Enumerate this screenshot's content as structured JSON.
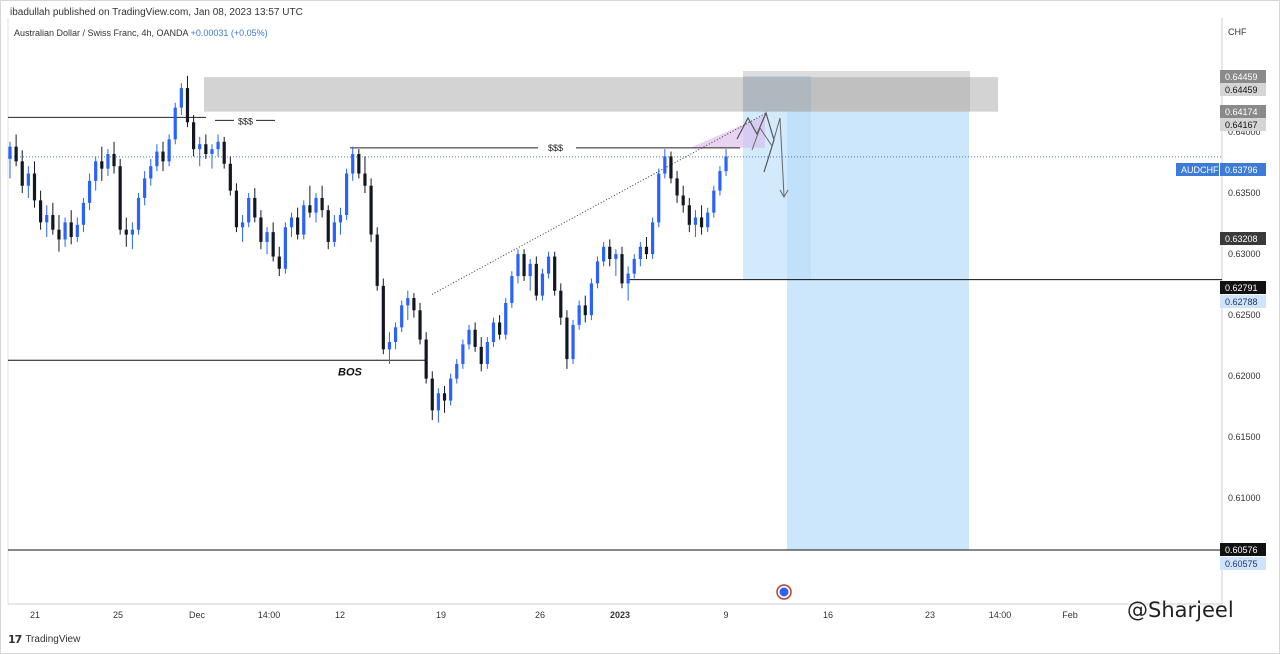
{
  "header": {
    "published": "ibadullah published on TradingView.com, Jan 08, 2023 13:57 UTC",
    "symbol_line": "Australian Dollar / Swiss Franc, 4h, OANDA",
    "change": "+0.00031 (+0.05%)",
    "currency": "CHF"
  },
  "footer": {
    "brand": "TradingView",
    "logo": "17"
  },
  "watermark": "@Sharjeel",
  "colors": {
    "up": "#2962ff",
    "down": "#131722",
    "zone": "#9e9e9e",
    "target": "#bbdefb",
    "grid": "#e6e6e6",
    "price_line": "#3d7bd6",
    "flag": "#2962ff"
  },
  "chart_data": {
    "type": "candlestick",
    "symbol": "AUDCHF",
    "interval": "4h",
    "current_price": 0.63796,
    "ylim": [
      0.6046,
      0.648
    ],
    "y_ticks": [
      "0.64000",
      "0.63500",
      "0.63000",
      "0.62500",
      "0.62000",
      "0.61500",
      "0.61000"
    ],
    "x_ticks": [
      "21",
      "25",
      "Dec",
      "14:00",
      "12",
      "19",
      "26",
      "2023",
      "9",
      "16",
      "23",
      "14:00",
      "Feb"
    ],
    "price_labels": [
      {
        "text": "0.64459",
        "kind": "gray"
      },
      {
        "text": "0.64459",
        "kind": "light"
      },
      {
        "text": "0.64174",
        "kind": "gray"
      },
      {
        "text": "0.64167",
        "kind": "light"
      },
      {
        "text": "AUDCHF",
        "kind": "blue"
      },
      {
        "text": "0.63796",
        "kind": "blue"
      },
      {
        "text": "0.63208",
        "kind": "dark"
      },
      {
        "text": "0.62791",
        "kind": "black"
      },
      {
        "text": "0.62788",
        "kind": "lightblue"
      },
      {
        "text": "0.60576",
        "kind": "black"
      },
      {
        "text": "0.60575",
        "kind": "lightblue"
      }
    ],
    "annotations": [
      "$$$",
      "$$$",
      "BOS"
    ],
    "zones": {
      "supply": [
        0.64167,
        0.64459
      ],
      "entry": [
        0.62791,
        0.64459
      ],
      "target": [
        0.60576,
        0.64167
      ]
    },
    "levels": {
      "bos": 0.6213,
      "liquidity_high": 0.6412,
      "liquidity_mid": 0.6387,
      "break_level": 0.62791,
      "target_line": 0.60576
    },
    "trendline": [
      [
        0.6267
      ],
      [
        0.6415
      ]
    ],
    "candles": [
      [
        0.6378,
        0.6392,
        0.6362,
        0.6388
      ],
      [
        0.6388,
        0.6398,
        0.6372,
        0.6376
      ],
      [
        0.6376,
        0.6385,
        0.635,
        0.6356
      ],
      [
        0.6356,
        0.6372,
        0.6346,
        0.6366
      ],
      [
        0.6366,
        0.6376,
        0.6338,
        0.6344
      ],
      [
        0.6344,
        0.6352,
        0.632,
        0.6326
      ],
      [
        0.6326,
        0.634,
        0.6314,
        0.6332
      ],
      [
        0.6332,
        0.6342,
        0.6316,
        0.632
      ],
      [
        0.632,
        0.6332,
        0.6302,
        0.6312
      ],
      [
        0.6312,
        0.633,
        0.6306,
        0.6326
      ],
      [
        0.6326,
        0.6336,
        0.6308,
        0.6314
      ],
      [
        0.6314,
        0.633,
        0.631,
        0.6324
      ],
      [
        0.6324,
        0.6346,
        0.6318,
        0.6342
      ],
      [
        0.6342,
        0.6366,
        0.6336,
        0.636
      ],
      [
        0.636,
        0.638,
        0.6352,
        0.6376
      ],
      [
        0.6376,
        0.6388,
        0.636,
        0.637
      ],
      [
        0.637,
        0.6386,
        0.6364,
        0.6382
      ],
      [
        0.6382,
        0.6392,
        0.6366,
        0.6372
      ],
      [
        0.6372,
        0.6378,
        0.6316,
        0.632
      ],
      [
        0.632,
        0.633,
        0.6306,
        0.6316
      ],
      [
        0.6316,
        0.6326,
        0.6304,
        0.632
      ],
      [
        0.632,
        0.635,
        0.6316,
        0.6346
      ],
      [
        0.6346,
        0.6368,
        0.634,
        0.6362
      ],
      [
        0.6362,
        0.6378,
        0.6356,
        0.6372
      ],
      [
        0.6372,
        0.639,
        0.6368,
        0.6384
      ],
      [
        0.6384,
        0.6392,
        0.6368,
        0.6376
      ],
      [
        0.6376,
        0.6398,
        0.6372,
        0.6394
      ],
      [
        0.6394,
        0.6424,
        0.639,
        0.642
      ],
      [
        0.642,
        0.644,
        0.6414,
        0.6436
      ],
      [
        0.6436,
        0.6446,
        0.6404,
        0.6408
      ],
      [
        0.6408,
        0.6414,
        0.638,
        0.6386
      ],
      [
        0.6386,
        0.6396,
        0.6372,
        0.639
      ],
      [
        0.639,
        0.6398,
        0.6378,
        0.6382
      ],
      [
        0.6382,
        0.639,
        0.637,
        0.6386
      ],
      [
        0.6386,
        0.6398,
        0.638,
        0.6392
      ],
      [
        0.6392,
        0.6396,
        0.637,
        0.6374
      ],
      [
        0.6374,
        0.638,
        0.6348,
        0.6352
      ],
      [
        0.6352,
        0.6358,
        0.6318,
        0.6322
      ],
      [
        0.6322,
        0.6332,
        0.631,
        0.6326
      ],
      [
        0.6326,
        0.635,
        0.6322,
        0.6346
      ],
      [
        0.6346,
        0.6354,
        0.6326,
        0.633
      ],
      [
        0.633,
        0.6336,
        0.6304,
        0.631
      ],
      [
        0.631,
        0.6322,
        0.63,
        0.6318
      ],
      [
        0.6318,
        0.6326,
        0.6294,
        0.6298
      ],
      [
        0.6298,
        0.6306,
        0.6282,
        0.6288
      ],
      [
        0.6288,
        0.6326,
        0.6284,
        0.6322
      ],
      [
        0.6322,
        0.6334,
        0.6314,
        0.633
      ],
      [
        0.633,
        0.6338,
        0.6312,
        0.6316
      ],
      [
        0.6316,
        0.6344,
        0.6312,
        0.634
      ],
      [
        0.634,
        0.6356,
        0.633,
        0.6334
      ],
      [
        0.6334,
        0.635,
        0.6326,
        0.6346
      ],
      [
        0.6346,
        0.6356,
        0.633,
        0.6336
      ],
      [
        0.6336,
        0.634,
        0.6304,
        0.631
      ],
      [
        0.631,
        0.6332,
        0.6306,
        0.6326
      ],
      [
        0.6326,
        0.6338,
        0.6316,
        0.6332
      ],
      [
        0.6332,
        0.637,
        0.6328,
        0.6366
      ],
      [
        0.6366,
        0.6388,
        0.636,
        0.6382
      ],
      [
        0.6382,
        0.6386,
        0.6362,
        0.6366
      ],
      [
        0.6366,
        0.638,
        0.635,
        0.6356
      ],
      [
        0.6356,
        0.6362,
        0.631,
        0.6316
      ],
      [
        0.6316,
        0.6322,
        0.627,
        0.6274
      ],
      [
        0.6274,
        0.628,
        0.6218,
        0.6222
      ],
      [
        0.6222,
        0.6236,
        0.621,
        0.6228
      ],
      [
        0.6228,
        0.6244,
        0.6222,
        0.624
      ],
      [
        0.624,
        0.6262,
        0.6236,
        0.6258
      ],
      [
        0.6258,
        0.627,
        0.6246,
        0.6264
      ],
      [
        0.6264,
        0.6268,
        0.6248,
        0.6254
      ],
      [
        0.6254,
        0.626,
        0.6226,
        0.623
      ],
      [
        0.623,
        0.6236,
        0.6194,
        0.6198
      ],
      [
        0.6198,
        0.6204,
        0.6164,
        0.6172
      ],
      [
        0.6172,
        0.619,
        0.6162,
        0.6186
      ],
      [
        0.6186,
        0.6192,
        0.617,
        0.618
      ],
      [
        0.618,
        0.6202,
        0.6176,
        0.6198
      ],
      [
        0.6198,
        0.6214,
        0.6194,
        0.621
      ],
      [
        0.621,
        0.623,
        0.6206,
        0.6226
      ],
      [
        0.6226,
        0.6242,
        0.6222,
        0.6238
      ],
      [
        0.6238,
        0.6244,
        0.622,
        0.6224
      ],
      [
        0.6224,
        0.6232,
        0.6204,
        0.621
      ],
      [
        0.621,
        0.6232,
        0.6206,
        0.6228
      ],
      [
        0.6228,
        0.6248,
        0.6224,
        0.6244
      ],
      [
        0.6244,
        0.625,
        0.623,
        0.6234
      ],
      [
        0.6234,
        0.6264,
        0.623,
        0.626
      ],
      [
        0.626,
        0.6286,
        0.6256,
        0.6282
      ],
      [
        0.6282,
        0.6304,
        0.6276,
        0.63
      ],
      [
        0.63,
        0.6304,
        0.6278,
        0.6282
      ],
      [
        0.6282,
        0.6296,
        0.627,
        0.6292
      ],
      [
        0.6292,
        0.6298,
        0.6262,
        0.6266
      ],
      [
        0.6266,
        0.6288,
        0.6262,
        0.6284
      ],
      [
        0.6284,
        0.6302,
        0.628,
        0.6298
      ],
      [
        0.6298,
        0.6302,
        0.6266,
        0.627
      ],
      [
        0.627,
        0.6276,
        0.6242,
        0.6248
      ],
      [
        0.6248,
        0.6254,
        0.6206,
        0.6214
      ],
      [
        0.6214,
        0.6246,
        0.621,
        0.6242
      ],
      [
        0.6242,
        0.6262,
        0.6238,
        0.6258
      ],
      [
        0.6258,
        0.6266,
        0.6244,
        0.625
      ],
      [
        0.625,
        0.628,
        0.6246,
        0.6276
      ],
      [
        0.6276,
        0.6298,
        0.6272,
        0.6294
      ],
      [
        0.6294,
        0.631,
        0.629,
        0.6306
      ],
      [
        0.6306,
        0.6312,
        0.629,
        0.6296
      ],
      [
        0.6296,
        0.6304,
        0.6282,
        0.63
      ],
      [
        0.63,
        0.6306,
        0.6272,
        0.6276
      ],
      [
        0.6276,
        0.629,
        0.6262,
        0.6284
      ],
      [
        0.6284,
        0.63,
        0.628,
        0.6296
      ],
      [
        0.6296,
        0.631,
        0.629,
        0.6306
      ],
      [
        0.6306,
        0.6314,
        0.6296,
        0.63
      ],
      [
        0.63,
        0.633,
        0.6296,
        0.6326
      ],
      [
        0.6326,
        0.637,
        0.6322,
        0.6366
      ],
      [
        0.6366,
        0.6386,
        0.6362,
        0.638
      ],
      [
        0.638,
        0.6384,
        0.6358,
        0.6362
      ],
      [
        0.6362,
        0.6368,
        0.6342,
        0.6348
      ],
      [
        0.6348,
        0.6356,
        0.6334,
        0.634
      ],
      [
        0.634,
        0.6346,
        0.6318,
        0.6324
      ],
      [
        0.6324,
        0.6336,
        0.6314,
        0.633
      ],
      [
        0.633,
        0.634,
        0.6316,
        0.6322
      ],
      [
        0.6322,
        0.6338,
        0.6318,
        0.6334
      ],
      [
        0.6334,
        0.6356,
        0.633,
        0.6352
      ],
      [
        0.6352,
        0.6372,
        0.6348,
        0.6368
      ],
      [
        0.6368,
        0.6386,
        0.6364,
        0.638
      ]
    ]
  }
}
